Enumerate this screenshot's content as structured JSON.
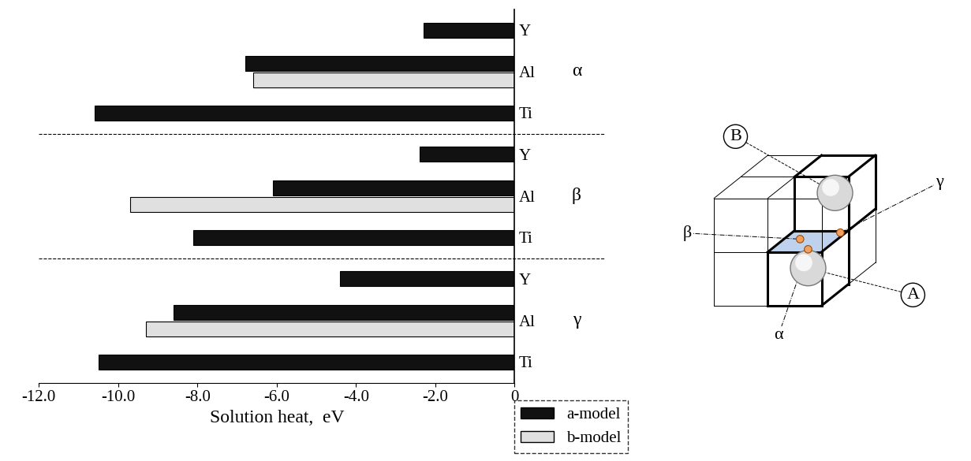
{
  "chart_data": {
    "type": "bar",
    "orientation": "horizontal",
    "categories": [
      "Y",
      "Al",
      "Ti",
      "Y",
      "Al",
      "Ti",
      "Y",
      "Al",
      "Ti"
    ],
    "groups": [
      "α",
      "β",
      "γ"
    ],
    "series": [
      {
        "name": "a-model",
        "color": "#111111",
        "values": [
          -2.3,
          -6.8,
          -10.6,
          -2.4,
          -6.1,
          -8.1,
          -4.4,
          -8.6,
          -10.5
        ]
      },
      {
        "name": "b-model",
        "color": "#e0e0e0",
        "values": [
          null,
          -6.6,
          null,
          null,
          -9.7,
          null,
          null,
          -9.3,
          null
        ]
      }
    ],
    "xlabel": "Solution heat,  eV",
    "xlim": [
      -12,
      0
    ],
    "xticks": [
      {
        "value": -12,
        "label": "-12.0"
      },
      {
        "value": -10,
        "label": "-10.0"
      },
      {
        "value": -8,
        "label": "-8.0"
      },
      {
        "value": -6,
        "label": "-6.0"
      },
      {
        "value": -4,
        "label": "-4.0"
      },
      {
        "value": -2,
        "label": "-2.0"
      },
      {
        "value": 0,
        "label": "0"
      }
    ],
    "legend": "lower right"
  },
  "diagram": {
    "labels": [
      "A",
      "B"
    ],
    "sites": [
      "α",
      "β",
      "γ"
    ]
  }
}
